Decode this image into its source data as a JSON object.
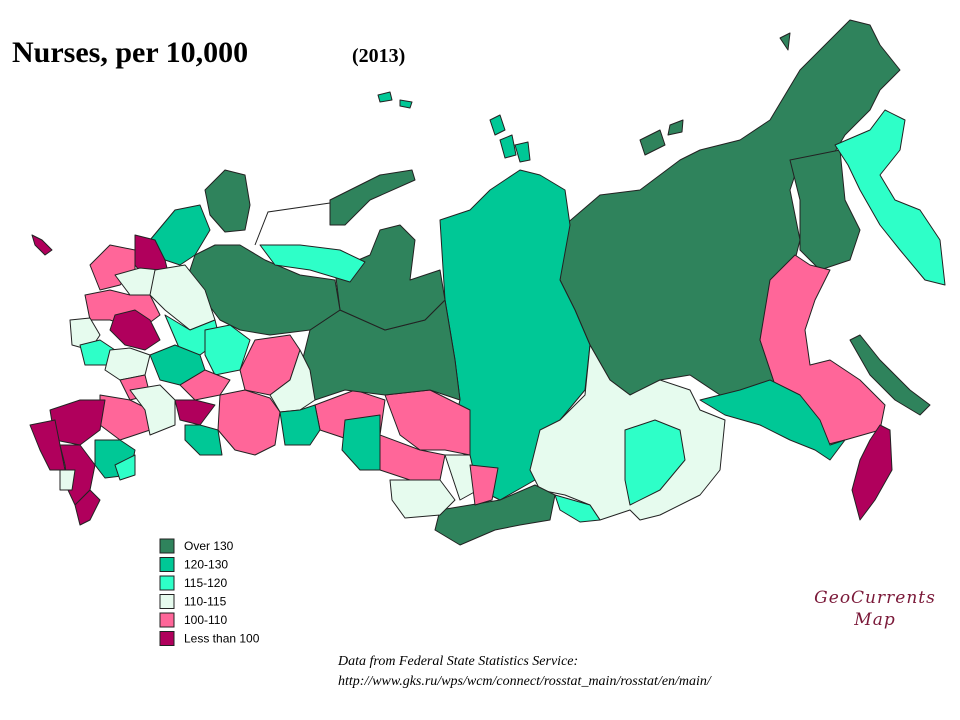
{
  "title": "Nurses, per 10,000",
  "subtitle": "(2013)",
  "legend": [
    {
      "label": "Over  130",
      "color": "#2f835c"
    },
    {
      "label": "120-130",
      "color": "#00c896"
    },
    {
      "label": "115-120",
      "color": "#2effc8"
    },
    {
      "label": "110-115",
      "color": "#e6fbee"
    },
    {
      "label": "100-110",
      "color": "#ff6699"
    },
    {
      "label": "Less than 100",
      "color": "#b0005c"
    }
  ],
  "credit": [
    "GeoCurrents",
    "Map"
  ],
  "source": [
    "Data from Federal State Statistics Service:",
    "http://www.gks.ru/wps/wcm/connect/rosstat_main/rosstat/en/main/"
  ]
}
